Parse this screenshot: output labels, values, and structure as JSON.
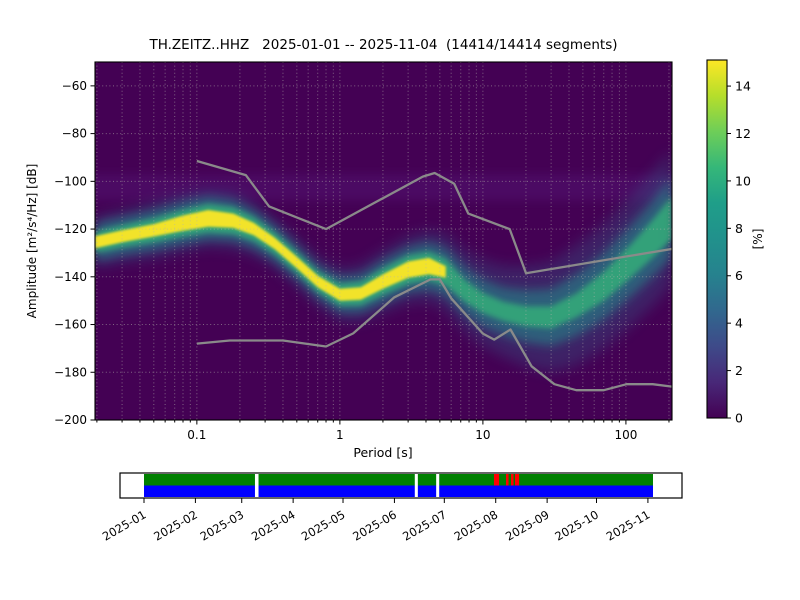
{
  "chart_data": {
    "type": "heatmap",
    "title": "TH.ZEITZ..HHZ   2025-01-01 -- 2025-11-04  (14414/14414 segments)",
    "xlabel": "Period [s]",
    "ylabel": "Amplitude [m²/s⁴/Hz] [dB]",
    "xscale": "log",
    "xlim": [
      0.0194,
      210
    ],
    "ylim": [
      -200,
      -50
    ],
    "xticks": [
      0.1,
      1,
      10,
      100
    ],
    "xtick_labels": [
      "0.1",
      "1",
      "10",
      "100"
    ],
    "yticks": [
      -60,
      -80,
      -100,
      -120,
      -140,
      -160,
      -180,
      -200
    ],
    "ytick_labels": [
      "−60",
      "−80",
      "−100",
      "−120",
      "−140",
      "−160",
      "−180",
      "−200"
    ],
    "grid": true,
    "background_color": "#440154",
    "colorbar": {
      "label": "[%]",
      "min": 0,
      "max": 15.1,
      "ticks": [
        0,
        2,
        4,
        6,
        8,
        10,
        12,
        14
      ],
      "colormap": "viridis",
      "stops": [
        "#440154",
        "#482878",
        "#3e4a89",
        "#31688e",
        "#26828e",
        "#21918c",
        "#1f9e89",
        "#35b779",
        "#6ece58",
        "#b5de2b",
        "#fde725"
      ]
    },
    "pdf_ridge": {
      "comment": "mode of the PPSD probability density (dB) vs period (s), with half-widths in dB for intensity bands",
      "periods": [
        0.0194,
        0.03,
        0.05,
        0.08,
        0.12,
        0.18,
        0.25,
        0.35,
        0.5,
        0.7,
        1.0,
        1.4,
        2.0,
        3.0,
        4.2,
        5.5,
        7.5,
        10,
        14,
        20,
        30,
        45,
        70,
        110,
        160,
        210
      ],
      "mode_db": [
        -125.5,
        -123,
        -120.5,
        -117.5,
        -115.5,
        -116.5,
        -120,
        -126,
        -134,
        -142,
        -147.5,
        -147,
        -142,
        -137,
        -135.5,
        -138,
        -146,
        -151,
        -154.5,
        -156.5,
        -157,
        -152,
        -144,
        -133,
        -123,
        -115
      ],
      "core_hw": [
        2.5,
        2.5,
        2.6,
        3.2,
        3.5,
        3,
        2.6,
        2.4,
        2.4,
        2.4,
        2.5,
        2.6,
        3,
        3.4,
        3.4,
        2.4,
        0,
        0,
        0,
        0,
        0,
        0,
        0,
        0,
        0,
        0
      ],
      "mid_hw": [
        4.5,
        4.6,
        5,
        5.6,
        6,
        5.6,
        5,
        4.6,
        4.4,
        4.4,
        4.6,
        5,
        5.6,
        6,
        6,
        5.6,
        4.6,
        4.2,
        4,
        4.2,
        4.6,
        5,
        6,
        7,
        8,
        9
      ],
      "glow_hw": [
        8,
        8,
        8.5,
        9,
        9,
        8.5,
        8,
        7.5,
        7,
        7,
        7.5,
        8,
        9,
        9.5,
        10,
        10,
        10,
        10,
        10,
        11,
        12,
        13,
        14,
        15,
        16,
        17
      ],
      "faint_hw": [
        11,
        11,
        12,
        12,
        12,
        12,
        11,
        10,
        10,
        10,
        11,
        12,
        13,
        14,
        15,
        16,
        17,
        18,
        19,
        21,
        23,
        25,
        26,
        27,
        28,
        28
      ],
      "colors": {
        "core": "#fde725",
        "mid": "#35b779",
        "glow": "#21918c",
        "faint": "#31688e"
      }
    },
    "secondary_band_db": [
      -97,
      -108
    ],
    "noise_models": {
      "color": "#8a8a8a",
      "nhnm": [
        [
          0.1,
          -91.5
        ],
        [
          0.22,
          -97.4
        ],
        [
          0.32,
          -110.5
        ],
        [
          0.8,
          -120
        ],
        [
          3.8,
          -98
        ],
        [
          4.6,
          -96.5
        ],
        [
          6.3,
          -101
        ],
        [
          7.9,
          -113.5
        ],
        [
          15.4,
          -120
        ],
        [
          20,
          -138.5
        ],
        [
          210,
          -128.3
        ]
      ],
      "nlnm": [
        [
          0.1,
          -168
        ],
        [
          0.17,
          -166.7
        ],
        [
          0.4,
          -166.7
        ],
        [
          0.8,
          -169.2
        ],
        [
          1.24,
          -163.7
        ],
        [
          2.4,
          -148.6
        ],
        [
          4.3,
          -141.1
        ],
        [
          5.0,
          -141.1
        ],
        [
          6.0,
          -149.0
        ],
        [
          10,
          -163.8
        ],
        [
          12,
          -166.3
        ],
        [
          15.6,
          -162.1
        ],
        [
          21.9,
          -177.5
        ],
        [
          31.6,
          -185.0
        ],
        [
          45,
          -187.5
        ],
        [
          70,
          -187.5
        ],
        [
          101,
          -185.0
        ],
        [
          154,
          -185.0
        ],
        [
          210,
          -186.0
        ]
      ]
    }
  },
  "timeline": {
    "months": [
      "2025-01",
      "2025-02",
      "2025-03",
      "2025-04",
      "2025-05",
      "2025-06",
      "2025-07",
      "2025-08",
      "2025-09",
      "2025-10",
      "2025-11"
    ],
    "month_fracs": [
      0.0,
      0.101,
      0.192,
      0.293,
      0.391,
      0.492,
      0.59,
      0.691,
      0.792,
      0.889,
      0.99
    ],
    "gaps": [
      {
        "frac": 0.218,
        "wfrac": 0.007
      },
      {
        "frac": 0.532,
        "wfrac": 0.006
      },
      {
        "frac": 0.574,
        "wfrac": 0.006
      }
    ],
    "reds": [
      {
        "frac": 0.6876,
        "wfrac": 0.01
      },
      {
        "frac": 0.7112,
        "wfrac": 0.005
      },
      {
        "frac": 0.721,
        "wfrac": 0.005
      },
      {
        "frac": 0.7289,
        "wfrac": 0.008
      }
    ],
    "colors": {
      "coverage": "#008000",
      "data": "#0000ff",
      "gap": "#ffffff",
      "warn": "#ff0000",
      "frame": "#000000"
    }
  }
}
